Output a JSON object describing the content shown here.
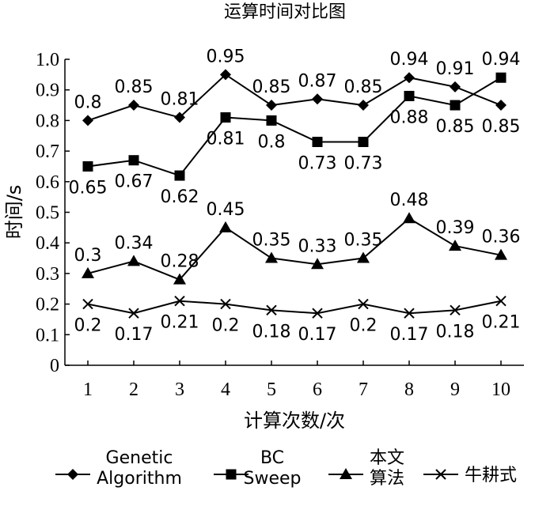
{
  "chart_data": {
    "type": "line",
    "title": "运算时间对比图",
    "xlabel": "计算次数/次",
    "ylabel": "时间/s",
    "x": [
      1,
      2,
      3,
      4,
      5,
      6,
      7,
      8,
      9,
      10
    ],
    "xlim": [
      0.5,
      10.5
    ],
    "ylim": [
      0,
      1.0
    ],
    "yticks": [
      "0",
      "0.1",
      "0.2",
      "0.3",
      "0.4",
      "0.5",
      "0.6",
      "0.7",
      "0.8",
      "0.9",
      "1.0"
    ],
    "xticks": [
      "1",
      "2",
      "3",
      "4",
      "5",
      "6",
      "7",
      "8",
      "9",
      "10"
    ],
    "legend_position": "bottom",
    "grid": false,
    "series": [
      {
        "name": "Genetic Algorithm",
        "legend_lines": [
          "Genetic",
          "Algorithm"
        ],
        "marker": "diamond",
        "values": [
          0.8,
          0.85,
          0.81,
          0.95,
          0.85,
          0.87,
          0.85,
          0.94,
          0.91,
          0.85
        ],
        "labels": [
          "0.8",
          "0.85",
          "0.81",
          "0.95",
          "0.85",
          "0.87",
          "0.85",
          "0.94",
          "0.91",
          "0.85"
        ],
        "label_pos": [
          "above",
          "above",
          "above",
          "above",
          "above",
          "above",
          "above",
          "above",
          "above",
          "below"
        ]
      },
      {
        "name": "BC Sweep",
        "legend_lines": [
          "BC",
          "Sweep"
        ],
        "marker": "square",
        "values": [
          0.65,
          0.67,
          0.62,
          0.81,
          0.8,
          0.73,
          0.73,
          0.88,
          0.85,
          0.94
        ],
        "labels": [
          "0.65",
          "0.67",
          "0.62",
          "0.81",
          "0.8",
          "0.73",
          "0.73",
          "0.88",
          "0.85",
          "0.94"
        ],
        "label_pos": [
          "below",
          "below",
          "below",
          "below",
          "below",
          "below",
          "below",
          "below",
          "below",
          "above"
        ]
      },
      {
        "name": "本文算法",
        "legend_lines": [
          "本文",
          "算法"
        ],
        "marker": "triangle",
        "values": [
          0.3,
          0.34,
          0.28,
          0.45,
          0.35,
          0.33,
          0.35,
          0.48,
          0.39,
          0.36
        ],
        "labels": [
          "0.3",
          "0.34",
          "0.28",
          "0.45",
          "0.35",
          "0.33",
          "0.35",
          "0.48",
          "0.39",
          "0.36"
        ],
        "label_pos": [
          "above",
          "above",
          "above",
          "above",
          "above",
          "above",
          "above",
          "above",
          "above",
          "above"
        ]
      },
      {
        "name": "牛耕式",
        "legend_lines": [
          "牛耕式"
        ],
        "marker": "x",
        "values": [
          0.2,
          0.17,
          0.21,
          0.2,
          0.18,
          0.17,
          0.2,
          0.17,
          0.18,
          0.21
        ],
        "labels": [
          "0.2",
          "0.17",
          "0.21",
          "0.2",
          "0.18",
          "0.17",
          "0.2",
          "0.17",
          "0.18",
          "0.21"
        ],
        "label_pos": [
          "below",
          "below",
          "below",
          "below",
          "below",
          "below",
          "below",
          "below",
          "below",
          "below"
        ]
      }
    ]
  }
}
